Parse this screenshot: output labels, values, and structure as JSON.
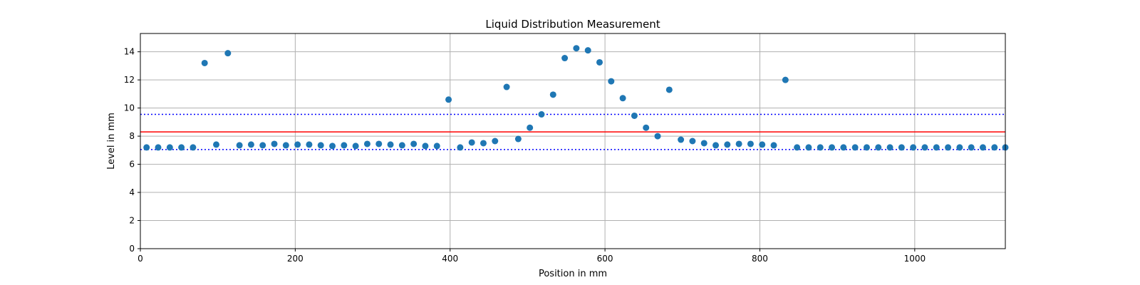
{
  "chart_data": {
    "type": "scatter",
    "title": "Liquid Distribution Measurement",
    "xlabel": "Position in mm",
    "ylabel": "Level in mm",
    "xlim": [
      0,
      1117
    ],
    "ylim": [
      0,
      15.3
    ],
    "xticks": [
      0,
      200,
      400,
      600,
      800,
      1000
    ],
    "yticks": [
      0,
      2,
      4,
      6,
      8,
      10,
      12,
      14
    ],
    "grid": true,
    "colors": {
      "points": "#1f77b4",
      "mean_line": "#ff0000",
      "band_lines": "#0000ff",
      "grid": "#b0b0b0"
    },
    "reference_lines": [
      {
        "kind": "mean",
        "y": 8.3,
        "style": "solid",
        "color": "#ff0000"
      },
      {
        "kind": "upper",
        "y": 9.55,
        "style": "dotted",
        "color": "#0000ff"
      },
      {
        "kind": "lower",
        "y": 7.05,
        "style": "dotted",
        "color": "#0000ff"
      }
    ],
    "series": [
      {
        "x": [
          8,
          23,
          38,
          53,
          68,
          83,
          98,
          113,
          128,
          143,
          158,
          173,
          188,
          203,
          218,
          233,
          248,
          263,
          278,
          293,
          308,
          323,
          338,
          353,
          368,
          383,
          398,
          413,
          428,
          443,
          458,
          473,
          488,
          503,
          518,
          533,
          548,
          563,
          578,
          593,
          608,
          623,
          638,
          653,
          668,
          683,
          698,
          713,
          728,
          743,
          758,
          773,
          788,
          803,
          818,
          833,
          848,
          863,
          878,
          893,
          908,
          923,
          938,
          953,
          968,
          983,
          998,
          1013,
          1028,
          1043,
          1058,
          1073,
          1088,
          1103,
          1117
        ],
        "y": [
          7.2,
          7.2,
          7.2,
          7.2,
          7.2,
          13.2,
          7.4,
          13.9,
          7.35,
          7.4,
          7.35,
          7.45,
          7.35,
          7.4,
          7.4,
          7.35,
          7.3,
          7.35,
          7.3,
          7.45,
          7.45,
          7.4,
          7.35,
          7.45,
          7.3,
          7.3,
          10.6,
          7.2,
          7.55,
          7.5,
          7.65,
          11.5,
          7.8,
          8.6,
          9.55,
          10.95,
          13.55,
          14.25,
          14.1,
          13.25,
          11.9,
          10.7,
          9.45,
          8.6,
          8.0,
          11.3,
          7.75,
          7.65,
          7.5,
          7.35,
          7.4,
          7.45,
          7.45,
          7.4,
          7.35,
          12.0,
          7.2,
          7.2,
          7.2,
          7.2,
          7.2,
          7.2,
          7.2,
          7.2,
          7.2,
          7.2,
          7.2,
          7.2,
          7.2,
          7.2,
          7.2,
          7.2,
          7.2,
          7.2,
          7.2
        ]
      }
    ]
  }
}
